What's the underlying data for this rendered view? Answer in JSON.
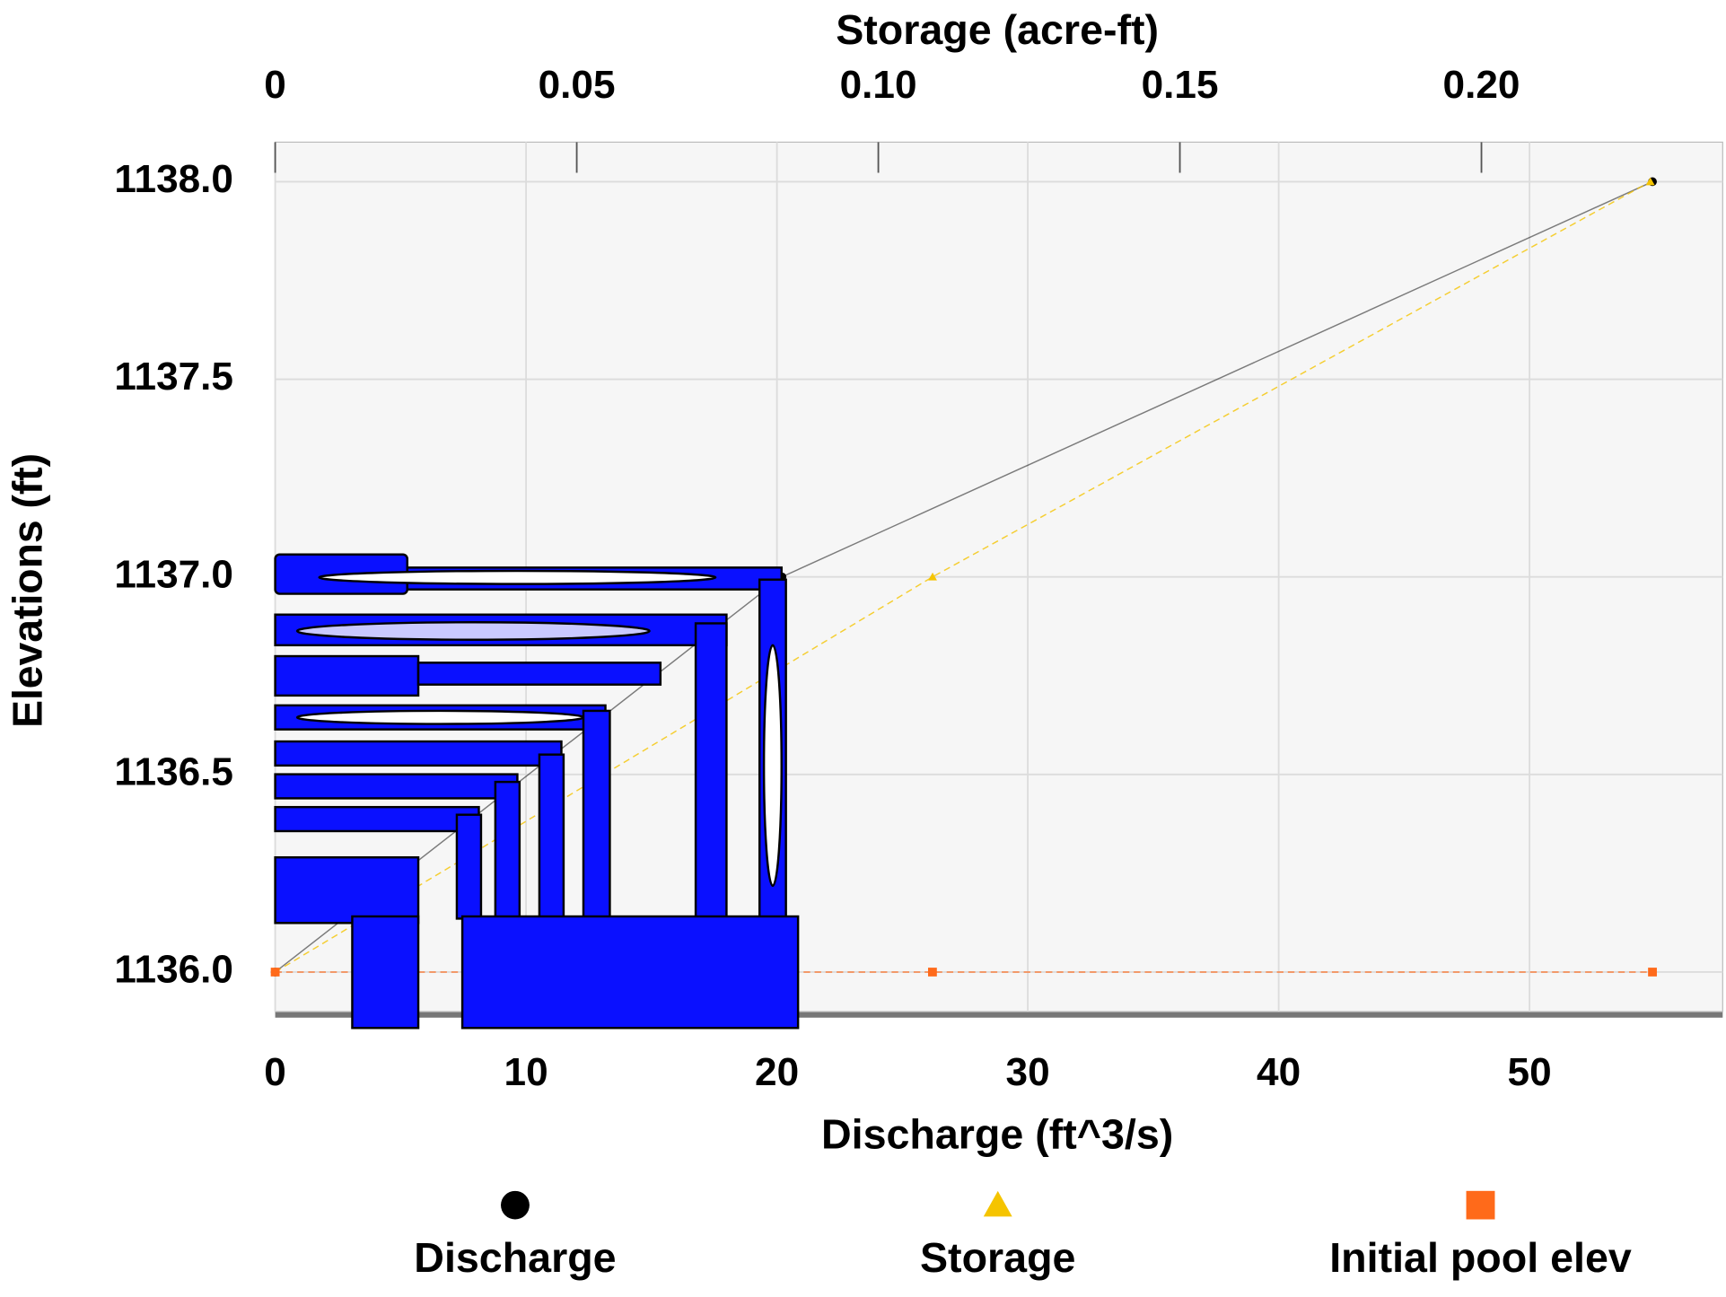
{
  "chart_data": {
    "type": "scatter",
    "xlabel": "Discharge (ft^3/s)",
    "x2label": "Storage (acre-ft)",
    "ylabel": "Elevations (ft)",
    "xlim": [
      0,
      57.7
    ],
    "xticks": [
      0,
      10,
      20,
      30,
      40,
      50
    ],
    "x2lim": [
      0,
      0.24
    ],
    "x2ticks": [
      0,
      0.05,
      {
        "value": 0.1,
        "label": "0.10"
      },
      0.15,
      {
        "value": 0.2,
        "label": "0.20"
      }
    ],
    "ylim": [
      1135.9,
      1138.1
    ],
    "yticks": [
      {
        "value": 1136,
        "label": "1136.0"
      },
      {
        "value": 1136.5,
        "label": "1136.5"
      },
      {
        "value": 1137,
        "label": "1137.0"
      },
      {
        "value": 1137.5,
        "label": "1137.5"
      },
      {
        "value": 1138,
        "label": "1138.0"
      }
    ],
    "grid": true,
    "legend": "bottom",
    "series": [
      {
        "name": "Discharge",
        "color": "#000000",
        "marker": "circle",
        "x": [
          0,
          20.2,
          54.9
        ],
        "values": [
          1136.0,
          1137.0,
          1138.0
        ]
      },
      {
        "name": "Storage",
        "color": "#f5c400",
        "marker": "triangle",
        "axis": "x2",
        "x": [
          0,
          0.109,
          0.228
        ],
        "values": [
          1136.0,
          1137.0,
          1138.0
        ]
      },
      {
        "name": "Initial pool elev",
        "color": "#ff6a1a",
        "marker": "square",
        "x": [
          0,
          26.2,
          54.9
        ],
        "values": [
          1136.0,
          1136.0,
          1136.0
        ]
      }
    ]
  }
}
